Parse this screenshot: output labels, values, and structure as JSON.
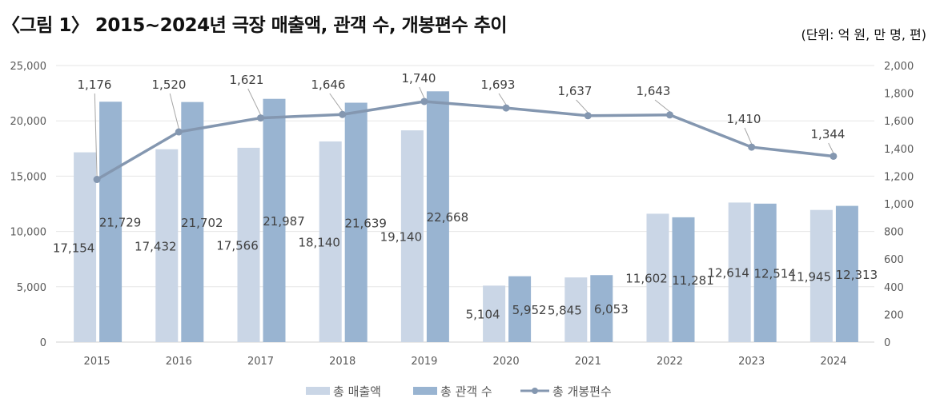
{
  "title": "〈그림 1〉 2015~2024년 극장 매출액, 관객 수, 개봉편수 추이",
  "unit_note": "(단위: 억 원, 만 명, 편)",
  "chart_data": {
    "type": "bar+line",
    "categories": [
      "2015",
      "2016",
      "2017",
      "2018",
      "2019",
      "2020",
      "2021",
      "2022",
      "2023",
      "2024"
    ],
    "series": [
      {
        "name": "총 매출액",
        "type": "bar",
        "axis": "left",
        "color": "#cad6e6",
        "values": [
          17154,
          17432,
          17566,
          18140,
          19140,
          5104,
          5845,
          11602,
          12614,
          11945
        ],
        "labels": [
          "17,154",
          "17,432",
          "17,566",
          "18,140",
          "19,140",
          "5,104",
          "5,845",
          "11,602",
          "12,614",
          "11,945"
        ]
      },
      {
        "name": "총 관객 수",
        "type": "bar",
        "axis": "left",
        "color": "#99b4d1",
        "values": [
          21729,
          21702,
          21987,
          21639,
          22668,
          5952,
          6053,
          11281,
          12514,
          12313
        ],
        "labels": [
          "21,729",
          "21,702",
          "21,987",
          "21,639",
          "22,668",
          "5,952",
          "6,053",
          "11,281",
          "12,514",
          "12,313"
        ]
      },
      {
        "name": "총 개봉편수",
        "type": "line",
        "axis": "right",
        "color": "#8497b0",
        "values": [
          1176,
          1520,
          1621,
          1646,
          1740,
          1693,
          1637,
          1643,
          1410,
          1344
        ],
        "labels": [
          "1,176",
          "1,520",
          "1,621",
          "1,646",
          "1,740",
          "1,693",
          "1,637",
          "1,643",
          "1,410",
          "1,344"
        ]
      }
    ],
    "y_left": {
      "range": [
        0,
        25000
      ],
      "ticks": [
        "0",
        "5,000",
        "10,000",
        "15,000",
        "20,000",
        "25,000"
      ]
    },
    "y_right": {
      "range": [
        0,
        2000
      ],
      "ticks": [
        "0",
        "200",
        "400",
        "600",
        "800",
        "1,000",
        "1,200",
        "1,400",
        "1,600",
        "1,800",
        "2,000"
      ]
    },
    "grid": true,
    "legend": "bottom"
  }
}
